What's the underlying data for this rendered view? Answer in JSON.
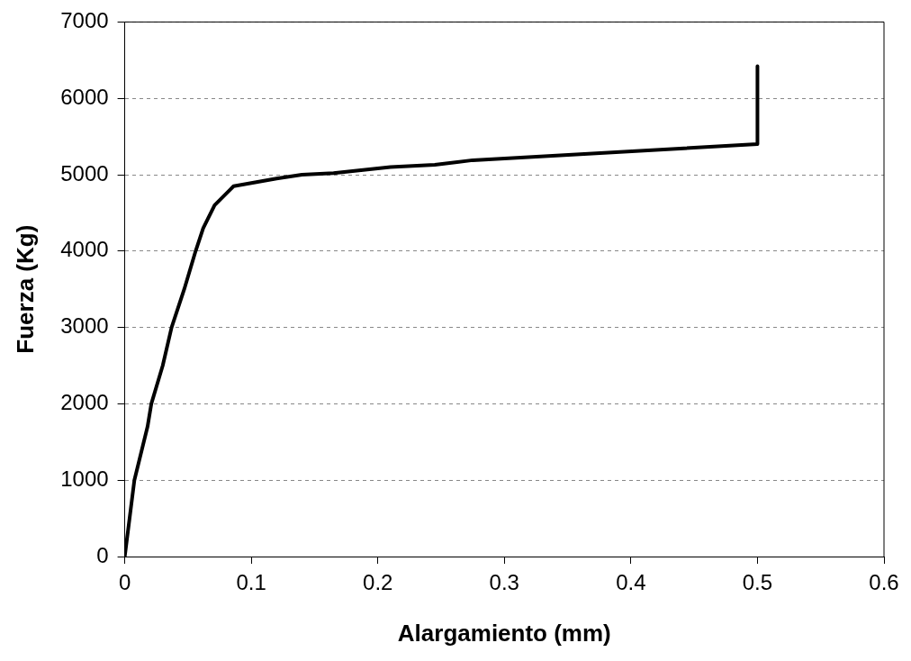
{
  "chart_data": {
    "type": "line",
    "xlabel": "Alargamiento (mm)",
    "ylabel": "Fuerza (Kg)",
    "x": [
      0,
      0.0076,
      0.018,
      0.021,
      0.03,
      0.037,
      0.047,
      0.056,
      0.062,
      0.071,
      0.086,
      0.12,
      0.14,
      0.165,
      0.21,
      0.245,
      0.275,
      0.5,
      0.5
    ],
    "series": [
      {
        "color": "#000000",
        "values": [
          0,
          1000,
          1700,
          2000,
          2500,
          3000,
          3500,
          4000,
          4300,
          4600,
          4850,
          4950,
          5000,
          5020,
          5100,
          5130,
          5190,
          5400,
          6420
        ]
      }
    ],
    "xlim": [
      0,
      0.6
    ],
    "xticks": [
      0,
      0.1,
      0.2,
      0.3,
      0.4,
      0.5,
      0.6
    ],
    "ylim": [
      0,
      7000
    ],
    "yticks": [
      0,
      1000,
      2000,
      3000,
      4000,
      5000,
      6000,
      7000
    ],
    "grid": "y",
    "legend": false,
    "marker": "none",
    "line_style": "solid"
  }
}
